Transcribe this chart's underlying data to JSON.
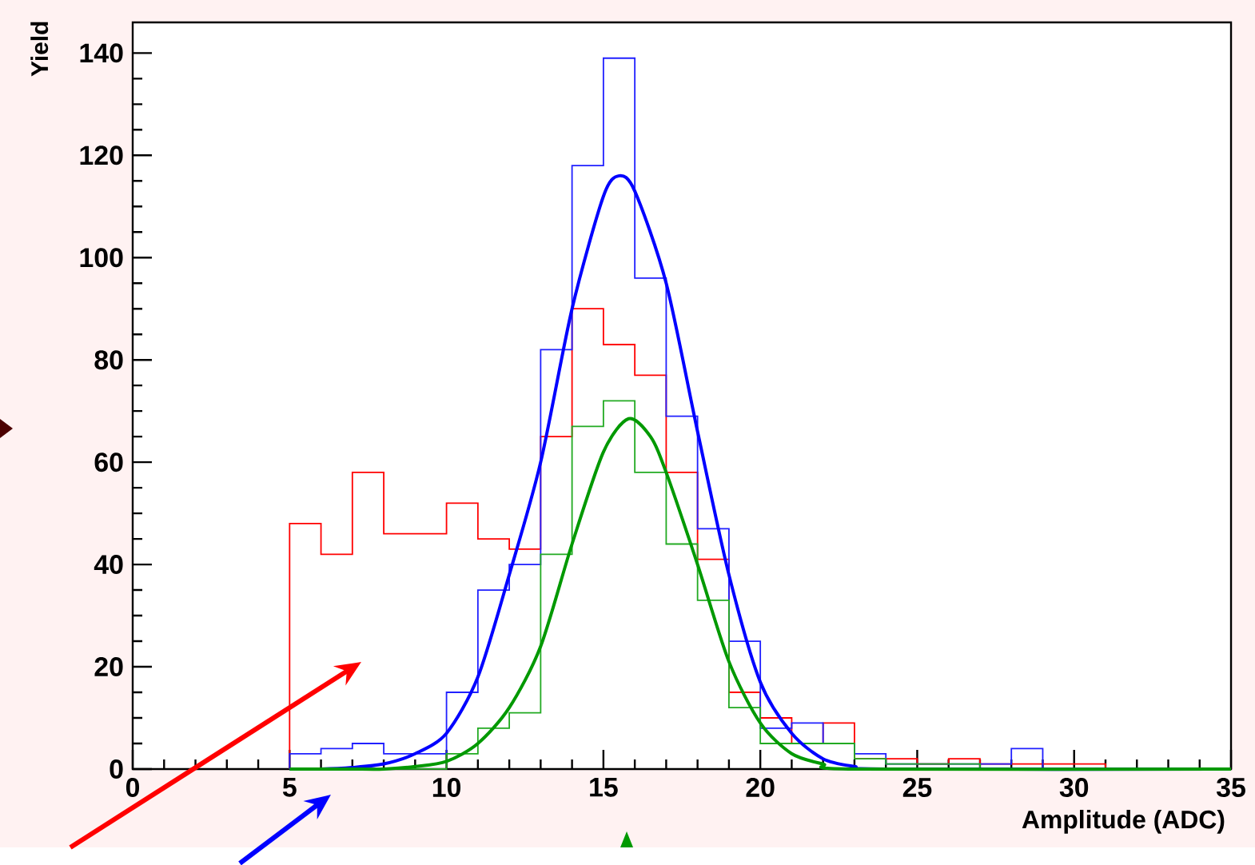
{
  "chart_data": {
    "type": "histogram",
    "xlabel": "Amplitude (ADC)",
    "ylabel": "Yield",
    "bins": [
      5,
      6,
      7,
      8,
      9,
      10,
      11,
      12,
      13,
      14,
      15,
      16,
      17,
      18,
      19,
      20,
      21,
      22,
      23,
      24,
      25,
      26,
      27,
      28,
      29,
      30,
      31,
      32,
      33,
      34,
      35
    ],
    "series": [
      {
        "color": "#ff0000",
        "values": [
          48,
          42,
          58,
          46,
          46,
          52,
          45,
          43,
          65,
          90,
          83,
          77,
          58,
          41,
          15,
          10,
          5,
          9,
          2,
          2,
          1,
          2,
          1,
          1,
          1,
          1,
          0,
          0,
          0,
          0
        ]
      },
      {
        "color": "#2020ff",
        "values": [
          3,
          4,
          5,
          3,
          3,
          15,
          35,
          40,
          82,
          118,
          139,
          96,
          69,
          47,
          25,
          8,
          9,
          5,
          3,
          1,
          1,
          1,
          1,
          4,
          0,
          0,
          0,
          0,
          0,
          0
        ]
      },
      {
        "color": "#22aa22",
        "values": [
          0,
          0,
          0,
          0,
          0,
          3,
          8,
          11,
          42,
          67,
          72,
          58,
          44,
          33,
          12,
          5,
          5,
          5,
          2,
          1,
          1,
          1,
          0,
          0,
          0,
          0,
          0,
          0,
          0,
          0
        ]
      },
      {
        "type": "line",
        "color": "#0000ff",
        "x": [
          5,
          6,
          7,
          8,
          9,
          10,
          11,
          12,
          13,
          14,
          15,
          15.5,
          16,
          17,
          18,
          19,
          20,
          21,
          22,
          23,
          24,
          35
        ],
        "values": [
          0,
          0,
          0.3,
          1,
          3,
          7,
          18,
          38,
          60,
          90,
          112,
          116,
          113,
          95,
          66,
          38,
          17,
          7,
          2,
          0.5,
          0,
          0
        ]
      },
      {
        "type": "line",
        "color": "#009900",
        "x": [
          5,
          6,
          7,
          8,
          9,
          10,
          11,
          12,
          13,
          14,
          15,
          15.8,
          16.5,
          17,
          18,
          19,
          20,
          21,
          22,
          23,
          35
        ],
        "values": [
          0,
          0,
          0,
          0,
          0.5,
          1.5,
          5,
          12,
          24,
          44,
          62,
          68.5,
          65,
          58,
          40,
          21,
          9,
          3,
          1,
          0,
          0
        ]
      }
    ],
    "xlim": [
      0,
      35
    ],
    "ylim": [
      0,
      146
    ],
    "xticks": [
      0,
      5,
      10,
      15,
      20,
      25,
      30,
      35
    ],
    "yticks": [
      0,
      20,
      40,
      60,
      80,
      100,
      120,
      140
    ],
    "marker": "none",
    "line_style": "solid"
  }
}
